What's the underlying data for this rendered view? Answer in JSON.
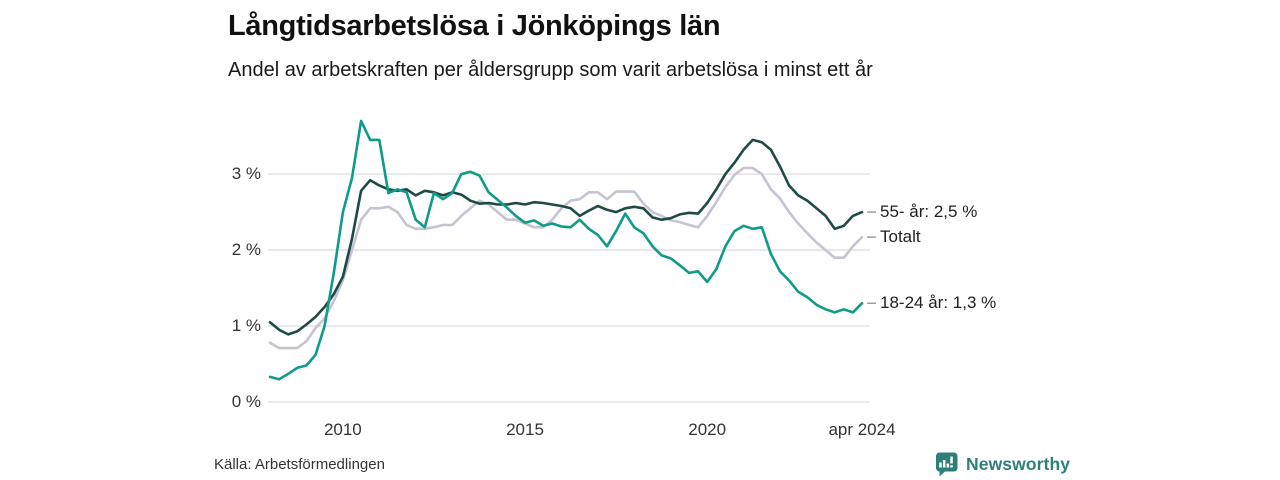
{
  "footer": {
    "source": "Källa: Arbetsförmedlingen",
    "brand": "Newsworthy"
  },
  "colors": {
    "series_55": "#1d4b44",
    "series_total": "#c6c3d2",
    "series_1824": "#0f9b88",
    "grid": "#dedede",
    "leader_dash": "#999999",
    "brand": "#2e7f78"
  },
  "chart_data": {
    "type": "line",
    "title": "Långtidsarbetslösa i Jönköpings län",
    "subtitle": "Andel av arbetskraften per åldersgrupp som varit arbetslösa i minst ett år",
    "xlabel": "",
    "ylabel": "",
    "grid": "horizontal",
    "legend_position": "right-end-labels",
    "xlim": [
      2008.0,
      2024.25
    ],
    "ylim": [
      0,
      3.87
    ],
    "x_ticks": [
      {
        "t": 2010,
        "label": "2010"
      },
      {
        "t": 2015,
        "label": "2015"
      },
      {
        "t": 2020,
        "label": "2020"
      },
      {
        "t": 2024.25,
        "label": "apr 2024"
      }
    ],
    "y_ticks": [
      {
        "v": 0,
        "label": "0 %"
      },
      {
        "v": 1,
        "label": "1 %"
      },
      {
        "v": 2,
        "label": "2 %"
      },
      {
        "v": 3,
        "label": "3 %"
      }
    ],
    "x": [
      2008.0,
      2008.25,
      2008.5,
      2008.75,
      2009.0,
      2009.25,
      2009.5,
      2009.75,
      2010.0,
      2010.25,
      2010.5,
      2010.75,
      2011.0,
      2011.25,
      2011.5,
      2011.75,
      2012.0,
      2012.25,
      2012.5,
      2012.75,
      2013.0,
      2013.25,
      2013.5,
      2013.75,
      2014.0,
      2014.25,
      2014.5,
      2014.75,
      2015.0,
      2015.25,
      2015.5,
      2015.75,
      2016.0,
      2016.25,
      2016.5,
      2016.75,
      2017.0,
      2017.25,
      2017.5,
      2017.75,
      2018.0,
      2018.25,
      2018.5,
      2018.75,
      2019.0,
      2019.25,
      2019.5,
      2019.75,
      2020.0,
      2020.25,
      2020.5,
      2020.75,
      2021.0,
      2021.25,
      2021.5,
      2021.75,
      2022.0,
      2022.25,
      2022.5,
      2022.75,
      2023.0,
      2023.25,
      2023.5,
      2023.75,
      2024.0,
      2024.25
    ],
    "series": [
      {
        "name": "Totalt",
        "end_label": "Totalt",
        "end_value": 2.17,
        "color_key": "series_total",
        "values": [
          0.78,
          0.71,
          0.71,
          0.71,
          0.8,
          0.97,
          1.1,
          1.33,
          1.6,
          2.0,
          2.4,
          2.55,
          2.55,
          2.57,
          2.5,
          2.33,
          2.28,
          2.28,
          2.3,
          2.33,
          2.33,
          2.45,
          2.55,
          2.65,
          2.6,
          2.5,
          2.4,
          2.4,
          2.35,
          2.3,
          2.3,
          2.4,
          2.55,
          2.65,
          2.67,
          2.76,
          2.76,
          2.67,
          2.77,
          2.77,
          2.77,
          2.61,
          2.5,
          2.45,
          2.39,
          2.37,
          2.33,
          2.3,
          2.45,
          2.63,
          2.83,
          2.99,
          3.08,
          3.08,
          3.0,
          2.8,
          2.68,
          2.5,
          2.35,
          2.22,
          2.1,
          2.0,
          1.9,
          1.9,
          2.05,
          2.17
        ]
      },
      {
        "name": "55- år",
        "end_label": "55- år: 2,5 %",
        "end_value": 2.5,
        "color_key": "series_55",
        "values": [
          1.05,
          0.95,
          0.89,
          0.93,
          1.02,
          1.12,
          1.25,
          1.42,
          1.65,
          2.15,
          2.78,
          2.92,
          2.85,
          2.8,
          2.78,
          2.8,
          2.72,
          2.78,
          2.76,
          2.72,
          2.76,
          2.73,
          2.65,
          2.61,
          2.62,
          2.6,
          2.6,
          2.62,
          2.6,
          2.63,
          2.62,
          2.6,
          2.58,
          2.55,
          2.45,
          2.52,
          2.58,
          2.53,
          2.5,
          2.55,
          2.57,
          2.55,
          2.43,
          2.4,
          2.42,
          2.47,
          2.49,
          2.48,
          2.62,
          2.8,
          3.0,
          3.15,
          3.32,
          3.45,
          3.42,
          3.32,
          3.1,
          2.85,
          2.72,
          2.65,
          2.55,
          2.45,
          2.28,
          2.32,
          2.45,
          2.5
        ]
      },
      {
        "name": "18-24 år",
        "end_label": "18-24 år: 1,3 %",
        "end_value": 1.3,
        "color_key": "series_1824",
        "values": [
          0.33,
          0.3,
          0.37,
          0.45,
          0.48,
          0.62,
          1.0,
          1.7,
          2.5,
          2.95,
          3.7,
          3.45,
          3.45,
          2.75,
          2.8,
          2.76,
          2.4,
          2.3,
          2.75,
          2.67,
          2.75,
          3.0,
          3.03,
          2.98,
          2.76,
          2.66,
          2.56,
          2.45,
          2.36,
          2.39,
          2.32,
          2.35,
          2.31,
          2.3,
          2.4,
          2.28,
          2.2,
          2.05,
          2.25,
          2.48,
          2.3,
          2.22,
          2.05,
          1.93,
          1.89,
          1.8,
          1.7,
          1.72,
          1.58,
          1.75,
          2.05,
          2.25,
          2.32,
          2.28,
          2.3,
          1.95,
          1.72,
          1.6,
          1.45,
          1.38,
          1.28,
          1.22,
          1.18,
          1.22,
          1.18,
          1.3
        ]
      }
    ]
  }
}
